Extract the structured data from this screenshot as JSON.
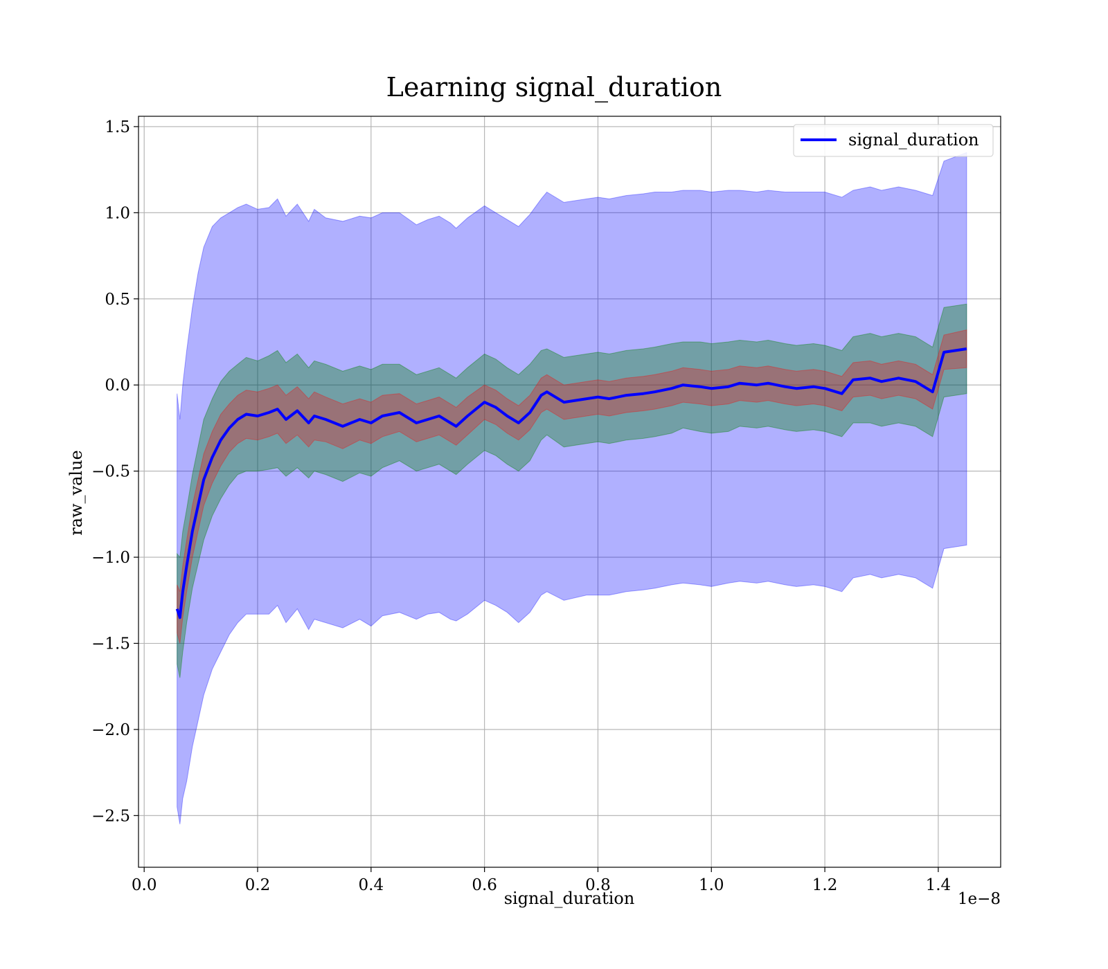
{
  "chart_data": {
    "type": "line",
    "title": "Learning signal_duration",
    "xlabel": "signal_duration",
    "ylabel": "raw_value",
    "x_offset_text": "1e−8",
    "xlim": [
      -0.01,
      1.51
    ],
    "ylim": [
      -2.8,
      1.56
    ],
    "xticks": [
      0.0,
      0.2,
      0.4,
      0.6,
      0.8,
      1.0,
      1.2,
      1.4
    ],
    "xtick_labels": [
      "0.0",
      "0.2",
      "0.4",
      "0.6",
      "0.8",
      "1.0",
      "1.2",
      "1.4"
    ],
    "yticks": [
      1.5,
      1.0,
      0.5,
      0.0,
      -0.5,
      -1.0,
      -1.5,
      -2.0,
      -2.5
    ],
    "ytick_labels": [
      "1.5",
      "1.0",
      "0.5",
      "0.0",
      "−0.5",
      "−1.0",
      "−1.5",
      "−2.0",
      "−2.5"
    ],
    "grid": true,
    "legend_position": "top-right",
    "series": [
      {
        "name": "signal_duration",
        "color": "#0000ff",
        "x": [
          0.058,
          0.063,
          0.068,
          0.075,
          0.085,
          0.095,
          0.105,
          0.12,
          0.135,
          0.15,
          0.165,
          0.18,
          0.2,
          0.22,
          0.235,
          0.25,
          0.27,
          0.29,
          0.3,
          0.32,
          0.35,
          0.38,
          0.4,
          0.42,
          0.45,
          0.48,
          0.5,
          0.52,
          0.54,
          0.55,
          0.57,
          0.6,
          0.62,
          0.64,
          0.66,
          0.68,
          0.7,
          0.71,
          0.74,
          0.78,
          0.8,
          0.82,
          0.85,
          0.88,
          0.9,
          0.93,
          0.95,
          0.98,
          1.0,
          1.03,
          1.05,
          1.08,
          1.1,
          1.13,
          1.15,
          1.18,
          1.2,
          1.23,
          1.25,
          1.28,
          1.3,
          1.33,
          1.36,
          1.39,
          1.41,
          1.45
        ],
        "values": [
          -1.3,
          -1.35,
          -1.2,
          -1.05,
          -0.85,
          -0.7,
          -0.55,
          -0.42,
          -0.32,
          -0.25,
          -0.2,
          -0.17,
          -0.18,
          -0.16,
          -0.14,
          -0.2,
          -0.15,
          -0.22,
          -0.18,
          -0.2,
          -0.24,
          -0.2,
          -0.22,
          -0.18,
          -0.16,
          -0.22,
          -0.2,
          -0.18,
          -0.22,
          -0.24,
          -0.18,
          -0.1,
          -0.13,
          -0.18,
          -0.22,
          -0.16,
          -0.06,
          -0.04,
          -0.1,
          -0.08,
          -0.07,
          -0.08,
          -0.06,
          -0.05,
          -0.04,
          -0.02,
          0.0,
          -0.01,
          -0.02,
          -0.01,
          0.01,
          0.0,
          0.01,
          -0.01,
          -0.02,
          -0.01,
          -0.02,
          -0.05,
          0.03,
          0.04,
          0.02,
          0.04,
          0.02,
          -0.04,
          0.19,
          0.21
        ]
      },
      {
        "name": "",
        "color": "#ff0000",
        "x": [
          0.058,
          0.063,
          0.068,
          0.075,
          0.085,
          0.095,
          0.105,
          0.12,
          0.135,
          0.15,
          0.165,
          0.18,
          0.2,
          0.22,
          0.235,
          0.25,
          0.27,
          0.29,
          0.3,
          0.32,
          0.35,
          0.38,
          0.4,
          0.42,
          0.45,
          0.48,
          0.5,
          0.52,
          0.54,
          0.55,
          0.57,
          0.6,
          0.62,
          0.64,
          0.66,
          0.68,
          0.7,
          0.71,
          0.74,
          0.78,
          0.8,
          0.82,
          0.85,
          0.88,
          0.9,
          0.93,
          0.95,
          0.98,
          1.0,
          1.03,
          1.05,
          1.08,
          1.1,
          1.13,
          1.15,
          1.18,
          1.2,
          1.23,
          1.25,
          1.28,
          1.3,
          1.33,
          1.36,
          1.39,
          1.41,
          1.45
        ],
        "upper": [
          -1.16,
          -1.2,
          -1.05,
          -0.9,
          -0.7,
          -0.55,
          -0.4,
          -0.27,
          -0.17,
          -0.11,
          -0.06,
          -0.03,
          -0.04,
          -0.02,
          0.0,
          -0.06,
          -0.01,
          -0.08,
          -0.04,
          -0.07,
          -0.11,
          -0.08,
          -0.1,
          -0.06,
          -0.05,
          -0.11,
          -0.09,
          -0.07,
          -0.11,
          -0.13,
          -0.07,
          0.0,
          -0.03,
          -0.08,
          -0.12,
          -0.06,
          0.04,
          0.06,
          0.0,
          0.02,
          0.03,
          0.02,
          0.04,
          0.05,
          0.06,
          0.08,
          0.1,
          0.09,
          0.08,
          0.09,
          0.11,
          0.1,
          0.11,
          0.09,
          0.08,
          0.09,
          0.08,
          0.05,
          0.13,
          0.14,
          0.12,
          0.14,
          0.12,
          0.06,
          0.29,
          0.32
        ],
        "lower": [
          -1.44,
          -1.5,
          -1.35,
          -1.2,
          -1.0,
          -0.85,
          -0.7,
          -0.57,
          -0.47,
          -0.39,
          -0.34,
          -0.31,
          -0.32,
          -0.3,
          -0.28,
          -0.34,
          -0.29,
          -0.36,
          -0.32,
          -0.33,
          -0.37,
          -0.32,
          -0.34,
          -0.3,
          -0.27,
          -0.33,
          -0.31,
          -0.29,
          -0.33,
          -0.35,
          -0.29,
          -0.2,
          -0.23,
          -0.28,
          -0.32,
          -0.26,
          -0.16,
          -0.14,
          -0.2,
          -0.18,
          -0.17,
          -0.18,
          -0.16,
          -0.15,
          -0.14,
          -0.12,
          -0.1,
          -0.11,
          -0.12,
          -0.11,
          -0.09,
          -0.1,
          -0.09,
          -0.11,
          -0.12,
          -0.11,
          -0.12,
          -0.15,
          -0.07,
          -0.06,
          -0.08,
          -0.06,
          -0.08,
          -0.14,
          0.09,
          0.1
        ]
      },
      {
        "name": "",
        "color": "#008000",
        "x": [
          0.058,
          0.063,
          0.068,
          0.075,
          0.085,
          0.095,
          0.105,
          0.12,
          0.135,
          0.15,
          0.165,
          0.18,
          0.2,
          0.22,
          0.235,
          0.25,
          0.27,
          0.29,
          0.3,
          0.32,
          0.35,
          0.38,
          0.4,
          0.42,
          0.45,
          0.48,
          0.5,
          0.52,
          0.54,
          0.55,
          0.57,
          0.6,
          0.62,
          0.64,
          0.66,
          0.68,
          0.7,
          0.71,
          0.74,
          0.78,
          0.8,
          0.82,
          0.85,
          0.88,
          0.9,
          0.93,
          0.95,
          0.98,
          1.0,
          1.03,
          1.05,
          1.08,
          1.1,
          1.13,
          1.15,
          1.18,
          1.2,
          1.23,
          1.25,
          1.28,
          1.3,
          1.33,
          1.36,
          1.39,
          1.41,
          1.45
        ],
        "upper": [
          -0.98,
          -1.0,
          -0.85,
          -0.72,
          -0.52,
          -0.36,
          -0.2,
          -0.08,
          0.02,
          0.08,
          0.12,
          0.16,
          0.14,
          0.17,
          0.2,
          0.13,
          0.18,
          0.1,
          0.14,
          0.12,
          0.08,
          0.11,
          0.09,
          0.12,
          0.12,
          0.06,
          0.08,
          0.1,
          0.06,
          0.04,
          0.1,
          0.18,
          0.15,
          0.1,
          0.06,
          0.12,
          0.2,
          0.21,
          0.16,
          0.18,
          0.19,
          0.18,
          0.2,
          0.21,
          0.22,
          0.24,
          0.25,
          0.25,
          0.24,
          0.25,
          0.26,
          0.25,
          0.26,
          0.24,
          0.23,
          0.24,
          0.23,
          0.2,
          0.28,
          0.3,
          0.28,
          0.3,
          0.28,
          0.22,
          0.45,
          0.47
        ]
      },
      {
        "name": "",
        "color": "#0000ff",
        "x": [
          0.058,
          0.063,
          0.068,
          0.075,
          0.085,
          0.095,
          0.105,
          0.12,
          0.135,
          0.15,
          0.165,
          0.18,
          0.2,
          0.22,
          0.235,
          0.25,
          0.27,
          0.29,
          0.3,
          0.32,
          0.35,
          0.38,
          0.4,
          0.42,
          0.45,
          0.48,
          0.5,
          0.52,
          0.54,
          0.55,
          0.57,
          0.6,
          0.62,
          0.64,
          0.66,
          0.68,
          0.7,
          0.71,
          0.74,
          0.78,
          0.8,
          0.82,
          0.85,
          0.88,
          0.9,
          0.93,
          0.95,
          0.98,
          1.0,
          1.03,
          1.05,
          1.08,
          1.1,
          1.13,
          1.15,
          1.18,
          1.2,
          1.23,
          1.25,
          1.28,
          1.3,
          1.33,
          1.36,
          1.39,
          1.41,
          1.45
        ],
        "upper": [
          -0.05,
          -0.2,
          0.0,
          0.2,
          0.45,
          0.65,
          0.8,
          0.92,
          0.97,
          1.0,
          1.03,
          1.05,
          1.02,
          1.03,
          1.08,
          0.98,
          1.05,
          0.95,
          1.02,
          0.97,
          0.95,
          0.98,
          0.97,
          1.0,
          1.0,
          0.93,
          0.96,
          0.98,
          0.94,
          0.91,
          0.97,
          1.04,
          1.0,
          0.96,
          0.92,
          0.99,
          1.08,
          1.12,
          1.06,
          1.08,
          1.09,
          1.08,
          1.1,
          1.11,
          1.12,
          1.12,
          1.13,
          1.13,
          1.12,
          1.13,
          1.13,
          1.12,
          1.13,
          1.12,
          1.12,
          1.12,
          1.12,
          1.09,
          1.13,
          1.15,
          1.13,
          1.15,
          1.13,
          1.1,
          1.3,
          1.35
        ],
        "lower": [
          -2.45,
          -2.55,
          -2.4,
          -2.3,
          -2.1,
          -1.95,
          -1.8,
          -1.65,
          -1.55,
          -1.45,
          -1.38,
          -1.33,
          -1.33,
          -1.33,
          -1.28,
          -1.38,
          -1.3,
          -1.42,
          -1.36,
          -1.38,
          -1.41,
          -1.36,
          -1.4,
          -1.34,
          -1.32,
          -1.36,
          -1.33,
          -1.32,
          -1.36,
          -1.37,
          -1.33,
          -1.25,
          -1.28,
          -1.32,
          -1.38,
          -1.32,
          -1.22,
          -1.2,
          -1.25,
          -1.22,
          -1.22,
          -1.22,
          -1.2,
          -1.19,
          -1.18,
          -1.16,
          -1.15,
          -1.16,
          -1.17,
          -1.15,
          -1.14,
          -1.15,
          -1.14,
          -1.16,
          -1.17,
          -1.16,
          -1.17,
          -1.2,
          -1.12,
          -1.1,
          -1.12,
          -1.1,
          -1.12,
          -1.18,
          -0.95,
          -0.93
        ]
      }
    ]
  }
}
